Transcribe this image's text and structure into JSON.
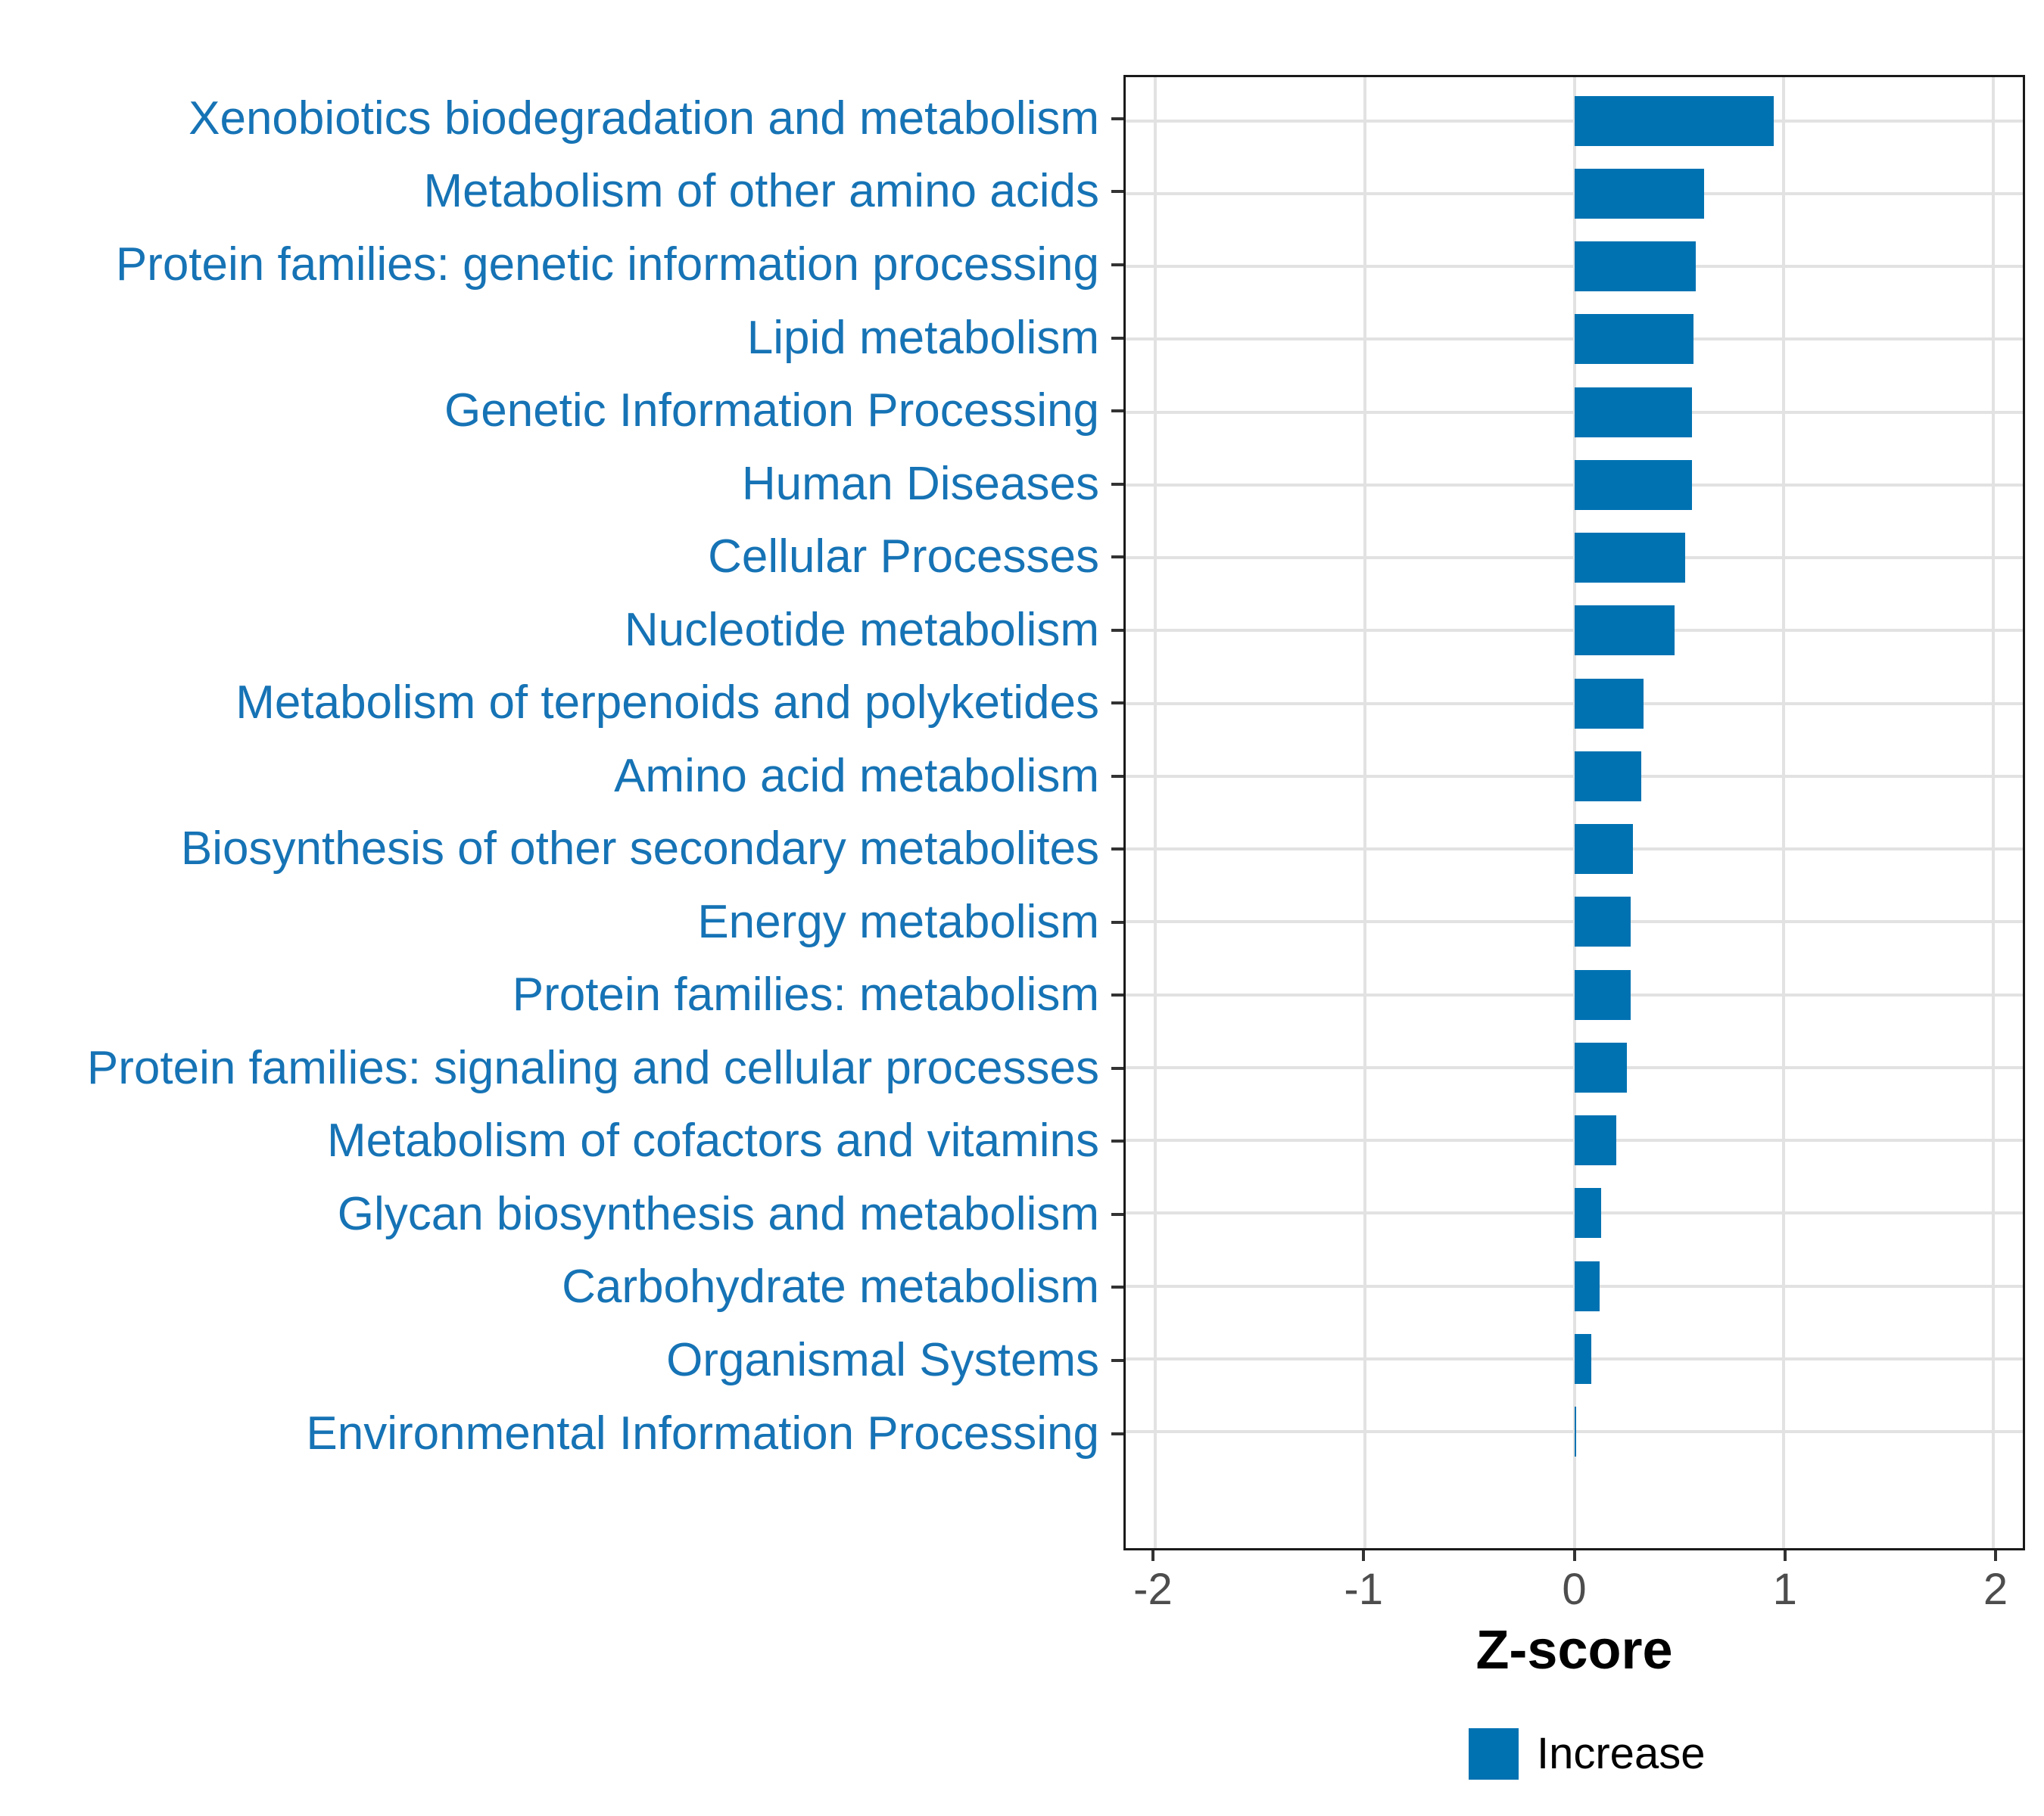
{
  "chart_data": {
    "type": "bar",
    "orientation": "horizontal",
    "xlabel": "Z-score",
    "series_name": "Increase",
    "categories": [
      "Xenobiotics biodegradation and metabolism",
      "Metabolism of other amino acids",
      "Protein families: genetic information processing",
      "Lipid metabolism",
      "Genetic Information Processing",
      "Human Diseases",
      "Cellular Processes",
      "Nucleotide metabolism",
      "Metabolism of terpenoids and polyketides",
      "Amino acid metabolism",
      "Biosynthesis of other secondary metabolites",
      "Energy metabolism",
      "Protein families: metabolism",
      "Protein families: signaling and cellular processes",
      "Metabolism of cofactors and vitamins",
      "Glycan biosynthesis and metabolism",
      "Carbohydrate metabolism",
      "Organismal Systems",
      "Environmental Information Processing"
    ],
    "values": [
      0.95,
      0.62,
      0.58,
      0.57,
      0.56,
      0.56,
      0.53,
      0.48,
      0.33,
      0.32,
      0.28,
      0.27,
      0.27,
      0.25,
      0.2,
      0.13,
      0.12,
      0.08,
      0.01
    ],
    "x_ticks": [
      -2,
      -1,
      0,
      1,
      2
    ],
    "x_tick_labels": [
      "-2",
      "-1",
      "0",
      "1",
      "2"
    ],
    "xlim": [
      -2.14,
      2.14
    ],
    "bar_width_fraction": 0.65,
    "grid": "major-only",
    "legend_position": "bottom-center",
    "colors": {
      "bar": "#0072B2",
      "category_label": "#1673b5",
      "tick_label": "#4d4d4d",
      "axis_title": "#000000",
      "gridline": "#e2e2e2",
      "panel_border": "#1a1a1a"
    }
  }
}
